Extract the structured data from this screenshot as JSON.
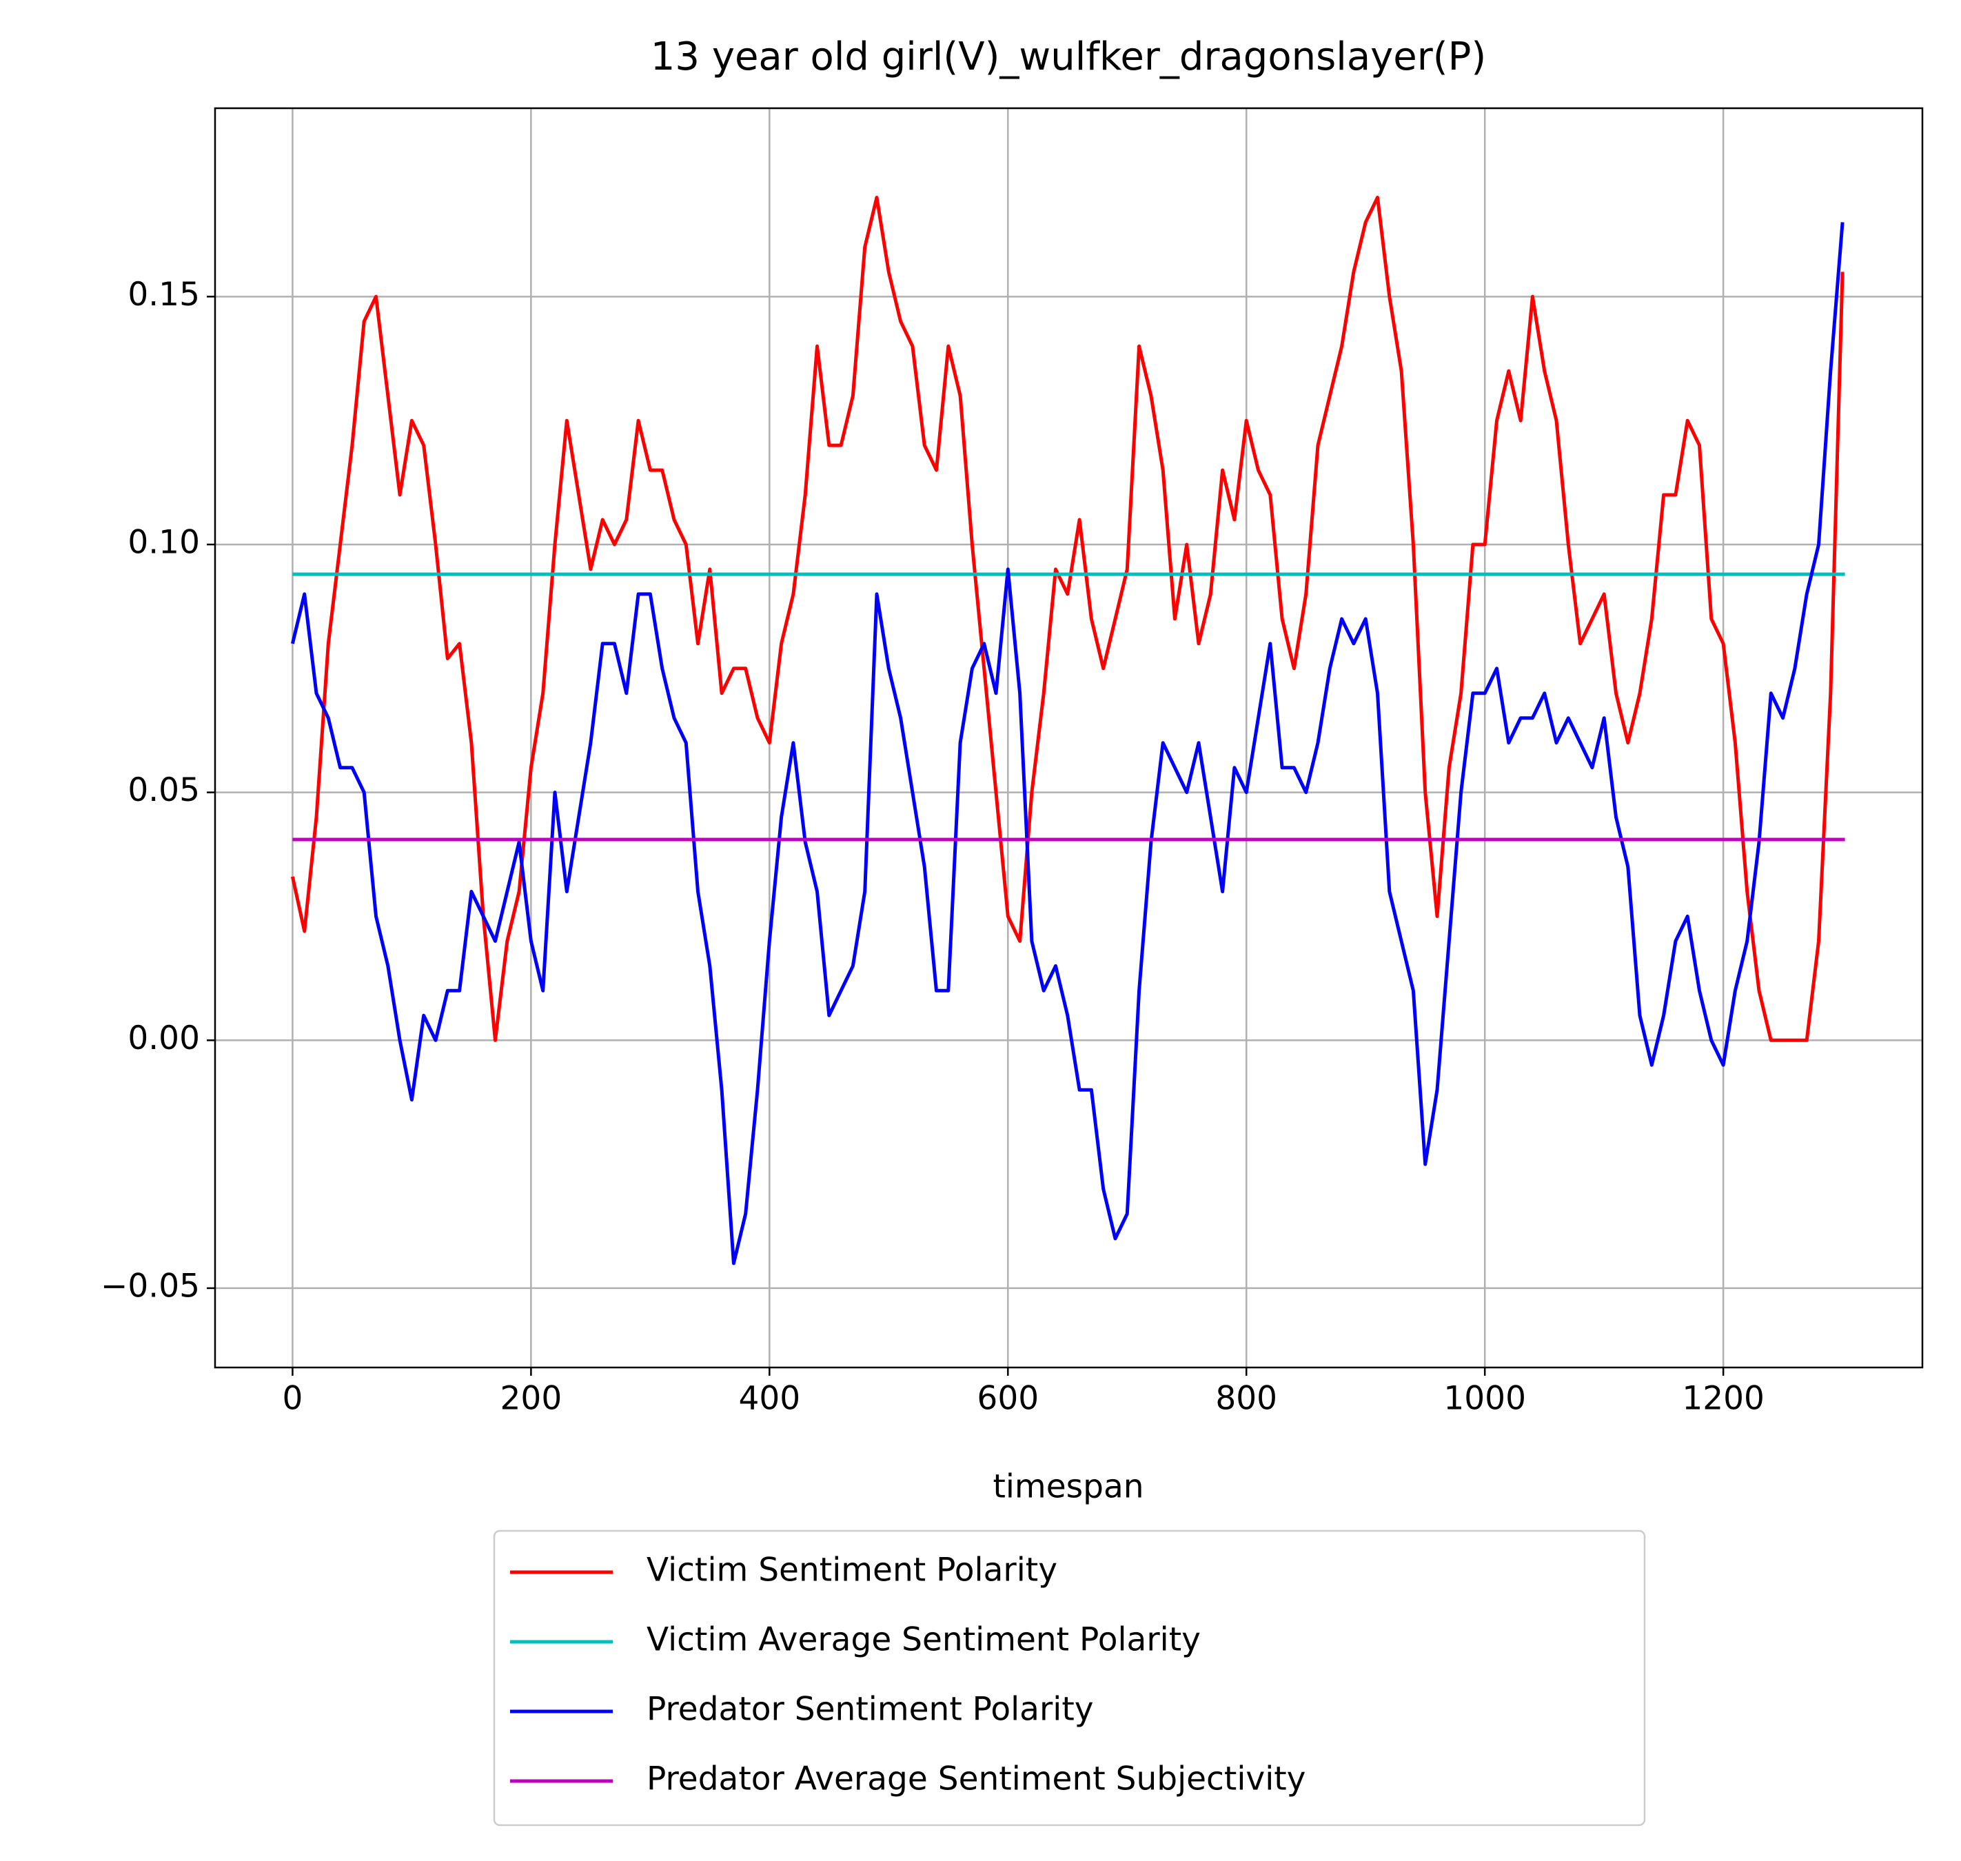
{
  "chart_data": {
    "type": "line",
    "title": "13 year old girl(V)_wulfker_dragonslayer(P)",
    "x_label": "timespan",
    "x": [
      0,
      10,
      20,
      30,
      40,
      50,
      60,
      70,
      80,
      90,
      100,
      110,
      120,
      130,
      140,
      150,
      160,
      170,
      180,
      190,
      200,
      210,
      220,
      230,
      240,
      250,
      260,
      270,
      280,
      290,
      300,
      310,
      320,
      330,
      340,
      350,
      360,
      370,
      380,
      390,
      400,
      410,
      420,
      430,
      440,
      450,
      460,
      470,
      480,
      490,
      500,
      510,
      520,
      530,
      540,
      550,
      560,
      570,
      580,
      590,
      600,
      610,
      620,
      630,
      640,
      650,
      660,
      670,
      680,
      690,
      700,
      710,
      720,
      730,
      740,
      750,
      760,
      770,
      780,
      790,
      800,
      810,
      820,
      830,
      840,
      850,
      860,
      870,
      880,
      890,
      900,
      910,
      920,
      930,
      940,
      950,
      960,
      970,
      980,
      990,
      1000,
      1010,
      1020,
      1030,
      1040,
      1050,
      1060,
      1070,
      1080,
      1090,
      1100,
      1110,
      1120,
      1130,
      1140,
      1150,
      1160,
      1170,
      1180,
      1190,
      1200,
      1210,
      1220,
      1230,
      1240,
      1250,
      1260,
      1270,
      1280,
      1290,
      1300
    ],
    "series": [
      {
        "name": "Victim Sentiment Polarity",
        "color": "#ff0000",
        "values": [
          0.033,
          0.022,
          0.045,
          0.08,
          0.1,
          0.12,
          0.145,
          0.15,
          0.13,
          0.11,
          0.125,
          0.12,
          0.1,
          0.077,
          0.08,
          0.06,
          0.025,
          0.0,
          0.02,
          0.03,
          0.055,
          0.07,
          0.1,
          0.125,
          0.11,
          0.095,
          0.105,
          0.1,
          0.105,
          0.125,
          0.115,
          0.115,
          0.105,
          0.1,
          0.08,
          0.095,
          0.07,
          0.075,
          0.075,
          0.065,
          0.06,
          0.08,
          0.09,
          0.11,
          0.14,
          0.12,
          0.12,
          0.13,
          0.16,
          0.17,
          0.155,
          0.145,
          0.14,
          0.12,
          0.115,
          0.14,
          0.13,
          0.1,
          0.075,
          0.05,
          0.025,
          0.02,
          0.05,
          0.07,
          0.095,
          0.09,
          0.105,
          0.085,
          0.075,
          0.085,
          0.095,
          0.14,
          0.13,
          0.115,
          0.085,
          0.1,
          0.08,
          0.09,
          0.115,
          0.105,
          0.125,
          0.115,
          0.11,
          0.085,
          0.075,
          0.09,
          0.12,
          0.13,
          0.14,
          0.155,
          0.165,
          0.17,
          0.15,
          0.135,
          0.1,
          0.05,
          0.025,
          0.055,
          0.07,
          0.1,
          0.1,
          0.125,
          0.135,
          0.125,
          0.15,
          0.135,
          0.125,
          0.1,
          0.08,
          0.085,
          0.09,
          0.07,
          0.06,
          0.07,
          0.085,
          0.11,
          0.11,
          0.125,
          0.12,
          0.085,
          0.08,
          0.06,
          0.03,
          0.01,
          0.0,
          0.0,
          0.0,
          0.0,
          0.02,
          0.07,
          0.155
        ]
      },
      {
        "name": "Victim Average Sentiment Polarity",
        "color": "#00bfbf",
        "x": [
          0,
          1302
        ],
        "values": [
          0.094,
          0.094
        ]
      },
      {
        "name": "Predator Sentiment Polarity",
        "color": "#0000ff",
        "values": [
          0.08,
          0.09,
          0.07,
          0.065,
          0.055,
          0.055,
          0.05,
          0.025,
          0.015,
          0.0,
          -0.012,
          0.005,
          0.0,
          0.01,
          0.01,
          0.03,
          0.025,
          0.02,
          0.03,
          0.04,
          0.02,
          0.01,
          0.05,
          0.03,
          0.045,
          0.06,
          0.08,
          0.08,
          0.07,
          0.09,
          0.09,
          0.075,
          0.065,
          0.06,
          0.03,
          0.015,
          -0.01,
          -0.045,
          -0.035,
          -0.01,
          0.02,
          0.045,
          0.06,
          0.04,
          0.03,
          0.005,
          0.01,
          0.015,
          0.03,
          0.09,
          0.075,
          0.065,
          0.05,
          0.035,
          0.01,
          0.01,
          0.06,
          0.075,
          0.08,
          0.07,
          0.095,
          0.07,
          0.02,
          0.01,
          0.015,
          0.005,
          -0.01,
          -0.01,
          -0.03,
          -0.04,
          -0.035,
          0.01,
          0.04,
          0.06,
          0.055,
          0.05,
          0.06,
          0.045,
          0.03,
          0.055,
          0.05,
          0.065,
          0.08,
          0.055,
          0.055,
          0.05,
          0.06,
          0.075,
          0.085,
          0.08,
          0.085,
          0.07,
          0.03,
          0.02,
          0.01,
          -0.025,
          -0.01,
          0.02,
          0.05,
          0.07,
          0.07,
          0.075,
          0.06,
          0.065,
          0.065,
          0.07,
          0.06,
          0.065,
          0.06,
          0.055,
          0.065,
          0.045,
          0.035,
          0.005,
          -0.005,
          0.005,
          0.02,
          0.025,
          0.01,
          0.0,
          -0.005,
          0.01,
          0.02,
          0.04,
          0.07,
          0.065,
          0.075,
          0.09,
          0.1,
          0.135,
          0.165
        ]
      },
      {
        "name": "Predator Average Sentiment Subjectivity",
        "color": "#bf00bf",
        "x": [
          0,
          1302
        ],
        "values": [
          0.0405,
          0.0405
        ]
      }
    ],
    "xlim": [
      -65,
      1367
    ],
    "ylim": [
      -0.066,
      0.188
    ],
    "xticks": [
      0,
      200,
      400,
      600,
      800,
      1000,
      1200
    ],
    "yticks": [
      {
        "value": -0.05,
        "label": "−0.05"
      },
      {
        "value": 0,
        "label": "0.00"
      },
      {
        "value": 0.05,
        "label": "0.05"
      },
      {
        "value": 0.1,
        "label": "0.10"
      },
      {
        "value": 0.15,
        "label": "0.15"
      }
    ],
    "grid": true,
    "legend": "below"
  }
}
